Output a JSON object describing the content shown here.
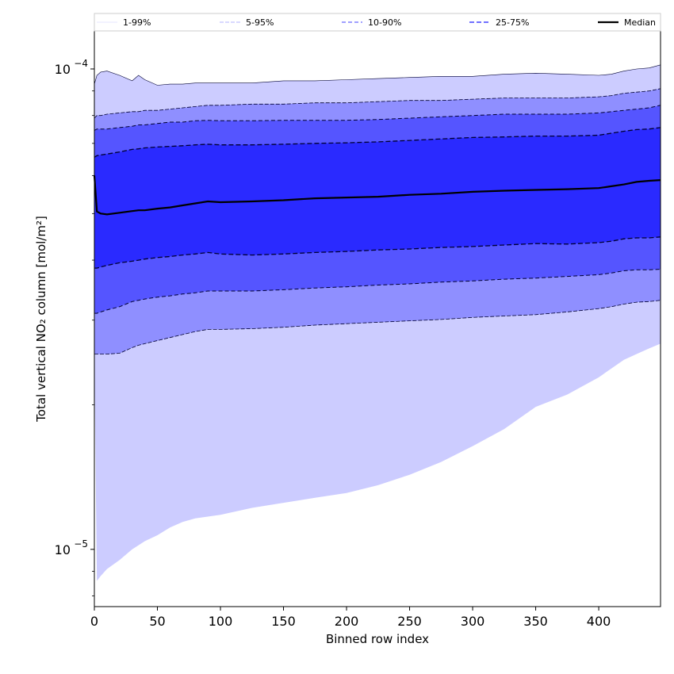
{
  "chart_data": {
    "type": "area",
    "xlabel": "Binned row index",
    "ylabel": "Total vertical NO₂ column [mol/m²]",
    "xlim": [
      0,
      449
    ],
    "ylim": [
      7.6e-06,
      0.00012
    ],
    "yscale": "log",
    "grid": false,
    "legend_placement": "top, above axes",
    "x_ticks": [
      0,
      50,
      100,
      150,
      200,
      250,
      300,
      350,
      400
    ],
    "x_tick_labels": [
      "0",
      "50",
      "100",
      "150",
      "200",
      "250",
      "300",
      "350",
      "400"
    ],
    "y_major_ticks": [
      {
        "value": 1e-05,
        "base": "10",
        "exp": "−5"
      },
      {
        "value": 0.0001,
        "base": "10",
        "exp": "−4"
      }
    ],
    "y_minor_ticks": [
      8e-06,
      9e-06,
      2e-05,
      3e-05,
      4e-05,
      5e-05,
      6e-05,
      7e-05,
      8e-05,
      9e-05
    ],
    "colors": {
      "band_1_99": "#ccccff",
      "band_5_95": "#8f8fff",
      "band_10_90": "#5555ff",
      "band_25_75": "#2a2aff",
      "median": "#000000"
    },
    "x": [
      0,
      2,
      5,
      10,
      20,
      30,
      35,
      40,
      50,
      60,
      70,
      80,
      90,
      100,
      125,
      150,
      175,
      200,
      225,
      250,
      275,
      300,
      325,
      350,
      375,
      400,
      410,
      420,
      430,
      440,
      449
    ],
    "series": [
      {
        "name": "1-99%",
        "lower": [
          2.5e-05,
          8.6e-06,
          8.8e-06,
          9.1e-06,
          9.5e-06,
          1e-05,
          1.02e-05,
          1.04e-05,
          1.07e-05,
          1.11e-05,
          1.14e-05,
          1.16e-05,
          1.17e-05,
          1.18e-05,
          1.22e-05,
          1.25e-05,
          1.28e-05,
          1.31e-05,
          1.36e-05,
          1.43e-05,
          1.52e-05,
          1.64e-05,
          1.78e-05,
          1.98e-05,
          2.1e-05,
          2.28e-05,
          2.38e-05,
          2.48e-05,
          2.55e-05,
          2.62e-05,
          2.68e-05
        ],
        "upper": [
          9.3e-05,
          9.7e-05,
          9.85e-05,
          9.9e-05,
          9.7e-05,
          9.45e-05,
          9.7e-05,
          9.5e-05,
          9.25e-05,
          9.3e-05,
          9.3e-05,
          9.35e-05,
          9.35e-05,
          9.35e-05,
          9.35e-05,
          9.45e-05,
          9.45e-05,
          9.5e-05,
          9.55e-05,
          9.6e-05,
          9.65e-05,
          9.65e-05,
          9.75e-05,
          9.8e-05,
          9.75e-05,
          9.7e-05,
          9.75e-05,
          9.9e-05,
          0.0001,
          0.0001005,
          0.000102
        ]
      },
      {
        "name": "5-95%",
        "lower": [
          2.55e-05,
          2.55e-05,
          2.55e-05,
          2.55e-05,
          2.56e-05,
          2.63e-05,
          2.66e-05,
          2.68e-05,
          2.72e-05,
          2.76e-05,
          2.8e-05,
          2.84e-05,
          2.87e-05,
          2.87e-05,
          2.88e-05,
          2.9e-05,
          2.93e-05,
          2.95e-05,
          2.97e-05,
          2.99e-05,
          3.01e-05,
          3.04e-05,
          3.06e-05,
          3.08e-05,
          3.12e-05,
          3.17e-05,
          3.2e-05,
          3.24e-05,
          3.27e-05,
          3.28e-05,
          3.3e-05
        ],
        "upper": [
          7.9e-05,
          8e-05,
          8e-05,
          8.05e-05,
          8.1e-05,
          8.15e-05,
          8.15e-05,
          8.2e-05,
          8.2e-05,
          8.25e-05,
          8.3e-05,
          8.35e-05,
          8.4e-05,
          8.4e-05,
          8.45e-05,
          8.45e-05,
          8.5e-05,
          8.5e-05,
          8.55e-05,
          8.6e-05,
          8.6e-05,
          8.65e-05,
          8.7e-05,
          8.7e-05,
          8.7e-05,
          8.75e-05,
          8.8e-05,
          8.9e-05,
          8.95e-05,
          9e-05,
          9.1e-05
        ]
      },
      {
        "name": "10-90%",
        "lower": [
          3.1e-05,
          3.1e-05,
          3.12e-05,
          3.15e-05,
          3.2e-05,
          3.28e-05,
          3.3e-05,
          3.32e-05,
          3.35e-05,
          3.37e-05,
          3.4e-05,
          3.42e-05,
          3.45e-05,
          3.45e-05,
          3.45e-05,
          3.47e-05,
          3.5e-05,
          3.52e-05,
          3.55e-05,
          3.57e-05,
          3.6e-05,
          3.62e-05,
          3.65e-05,
          3.67e-05,
          3.7e-05,
          3.73e-05,
          3.76e-05,
          3.8e-05,
          3.82e-05,
          3.82e-05,
          3.83e-05
        ],
        "upper": [
          7.45e-05,
          7.5e-05,
          7.5e-05,
          7.5e-05,
          7.55e-05,
          7.6e-05,
          7.65e-05,
          7.65e-05,
          7.7e-05,
          7.75e-05,
          7.75e-05,
          7.8e-05,
          7.82e-05,
          7.8e-05,
          7.8e-05,
          7.82e-05,
          7.82e-05,
          7.82e-05,
          7.85e-05,
          7.9e-05,
          7.95e-05,
          8e-05,
          8.05e-05,
          8.05e-05,
          8.05e-05,
          8.1e-05,
          8.15e-05,
          8.2e-05,
          8.25e-05,
          8.3e-05,
          8.4e-05
        ]
      },
      {
        "name": "25-75%",
        "lower": [
          3.85e-05,
          3.85e-05,
          3.87e-05,
          3.9e-05,
          3.95e-05,
          3.98e-05,
          4e-05,
          4.02e-05,
          4.05e-05,
          4.07e-05,
          4.1e-05,
          4.12e-05,
          4.15e-05,
          4.12e-05,
          4.1e-05,
          4.12e-05,
          4.15e-05,
          4.17e-05,
          4.2e-05,
          4.22e-05,
          4.25e-05,
          4.27e-05,
          4.3e-05,
          4.33e-05,
          4.32e-05,
          4.35e-05,
          4.38e-05,
          4.43e-05,
          4.45e-05,
          4.45e-05,
          4.47e-05
        ],
        "upper": [
          6.55e-05,
          6.6e-05,
          6.62e-05,
          6.65e-05,
          6.72e-05,
          6.8e-05,
          6.82e-05,
          6.85e-05,
          6.88e-05,
          6.9e-05,
          6.92e-05,
          6.95e-05,
          6.97e-05,
          6.95e-05,
          6.95e-05,
          6.97e-05,
          7e-05,
          7.02e-05,
          7.05e-05,
          7.1e-05,
          7.15e-05,
          7.2e-05,
          7.22e-05,
          7.25e-05,
          7.25e-05,
          7.28e-05,
          7.35e-05,
          7.42e-05,
          7.48e-05,
          7.5e-05,
          7.55e-05
        ]
      },
      {
        "name": "Median",
        "values": [
          6e-05,
          5.05e-05,
          5e-05,
          4.98e-05,
          5.02e-05,
          5.06e-05,
          5.08e-05,
          5.08e-05,
          5.12e-05,
          5.15e-05,
          5.2e-05,
          5.25e-05,
          5.3e-05,
          5.28e-05,
          5.3e-05,
          5.33e-05,
          5.38e-05,
          5.4e-05,
          5.42e-05,
          5.47e-05,
          5.5e-05,
          5.55e-05,
          5.58e-05,
          5.6e-05,
          5.62e-05,
          5.65e-05,
          5.7e-05,
          5.75e-05,
          5.82e-05,
          5.85e-05,
          5.87e-05
        ]
      }
    ]
  }
}
